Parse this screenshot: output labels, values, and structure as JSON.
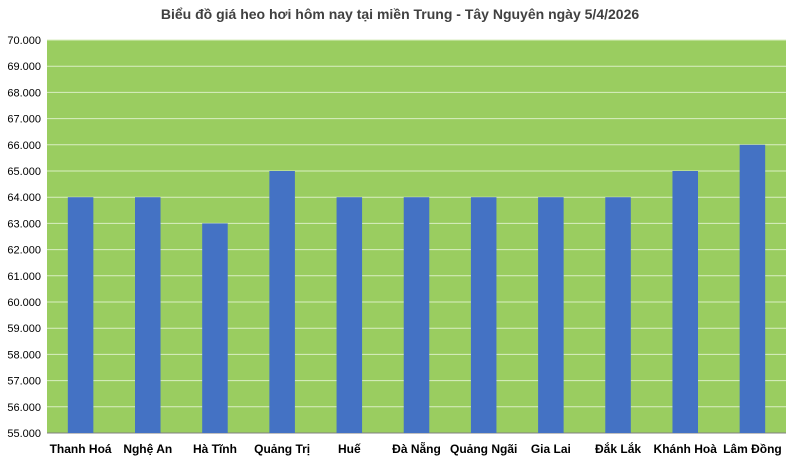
{
  "chart_data": {
    "type": "bar",
    "title": "Biểu đồ giá heo hơi hôm nay tại miền Trung - Tây Nguyên ngày 5/4/2026",
    "categories": [
      "Thanh Hoá",
      "Nghệ An",
      "Hà Tĩnh",
      "Quảng Trị",
      "Huế",
      "Đà Nẵng",
      "Quảng Ngãi",
      "Gia Lai",
      "Đắk Lắk",
      "Khánh Hoà",
      "Lâm Đồng"
    ],
    "values": [
      64000,
      64000,
      63000,
      65000,
      64000,
      64000,
      64000,
      64000,
      64000,
      65000,
      66000
    ],
    "ylim": [
      55000,
      70000
    ],
    "ytick_step": 1000,
    "ytick_labels": [
      "55.000",
      "56.000",
      "57.000",
      "58.000",
      "59.000",
      "60.000",
      "61.000",
      "62.000",
      "63.000",
      "64.000",
      "65.000",
      "66.000",
      "67.000",
      "68.000",
      "69.000",
      "70.000"
    ],
    "xlabel": "",
    "ylabel": "",
    "grid": true,
    "colors": {
      "bar": "#4472C4",
      "plot_background": "#9ACD60",
      "gridline": "#D9EEC2",
      "axis": "#808080"
    }
  }
}
